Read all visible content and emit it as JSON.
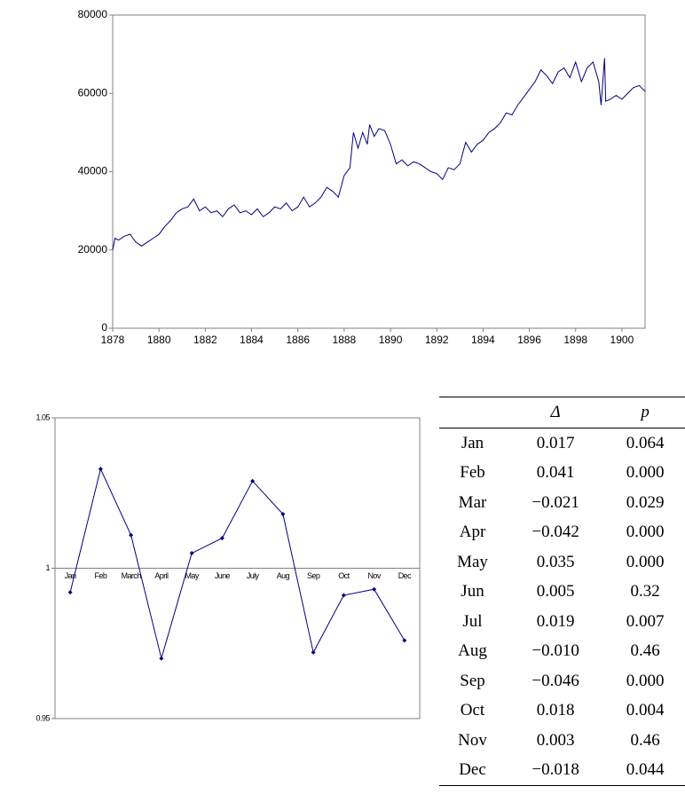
{
  "chart_data": [
    {
      "type": "line",
      "color": "#000080",
      "x": [
        1878.0,
        1878.1,
        1878.25,
        1878.5,
        1878.75,
        1879.0,
        1879.25,
        1879.5,
        1879.75,
        1880.0,
        1880.25,
        1880.5,
        1880.75,
        1881.0,
        1881.25,
        1881.5,
        1881.75,
        1882.0,
        1882.25,
        1882.5,
        1882.75,
        1883.0,
        1883.25,
        1883.5,
        1883.75,
        1884.0,
        1884.25,
        1884.5,
        1884.75,
        1885.0,
        1885.25,
        1885.5,
        1885.75,
        1886.0,
        1886.25,
        1886.5,
        1886.75,
        1887.0,
        1887.25,
        1887.5,
        1887.75,
        1888.0,
        1888.25,
        1888.4,
        1888.6,
        1888.8,
        1889.0,
        1889.1,
        1889.3,
        1889.5,
        1889.75,
        1890.0,
        1890.25,
        1890.5,
        1890.75,
        1891.0,
        1891.25,
        1891.5,
        1891.75,
        1892.0,
        1892.25,
        1892.5,
        1892.75,
        1893.0,
        1893.25,
        1893.5,
        1893.75,
        1894.0,
        1894.25,
        1894.5,
        1894.75,
        1895.0,
        1895.25,
        1895.5,
        1895.75,
        1896.0,
        1896.25,
        1896.5,
        1896.75,
        1897.0,
        1897.25,
        1897.5,
        1897.75,
        1898.0,
        1898.25,
        1898.5,
        1898.75,
        1899.0,
        1899.1,
        1899.25,
        1899.3,
        1899.5,
        1899.75,
        1900.0,
        1900.25,
        1900.5,
        1900.75,
        1901.0
      ],
      "values": [
        20000,
        23000,
        22500,
        23500,
        24000,
        22000,
        21000,
        22000,
        23000,
        24000,
        26000,
        27500,
        29500,
        30500,
        31000,
        33000,
        30000,
        31000,
        29500,
        30000,
        28500,
        30500,
        31500,
        29500,
        30000,
        29000,
        30500,
        28500,
        29500,
        31000,
        30500,
        32000,
        30000,
        31000,
        33500,
        31000,
        32000,
        33500,
        36000,
        35000,
        33500,
        39000,
        41000,
        50000,
        46000,
        50000,
        47000,
        52000,
        49000,
        51000,
        50500,
        47000,
        42000,
        43000,
        41500,
        42500,
        42000,
        41000,
        40000,
        39500,
        38000,
        41000,
        40500,
        42000,
        47500,
        45000,
        47000,
        48000,
        50000,
        51000,
        52500,
        55000,
        54500,
        57000,
        59000,
        61000,
        63000,
        66000,
        64500,
        62500,
        65500,
        66500,
        64000,
        68000,
        63000,
        66500,
        68000,
        63000,
        57000,
        69000,
        58000,
        58500,
        59500,
        58500,
        60000,
        61500,
        62000,
        60500
      ],
      "xlim": [
        1878,
        1901
      ],
      "xticks": [
        1878,
        1880,
        1882,
        1884,
        1886,
        1888,
        1890,
        1892,
        1894,
        1896,
        1898,
        1900
      ],
      "ylim": [
        0,
        80000
      ],
      "yticks": [
        0,
        20000,
        40000,
        60000,
        80000
      ],
      "grid": false
    },
    {
      "type": "line",
      "color": "#000080",
      "markers": true,
      "categories": [
        "Jan",
        "Feb",
        "March",
        "April",
        "May",
        "June",
        "July",
        "Aug",
        "Sep",
        "Oct",
        "Nov",
        "Dec"
      ],
      "values": [
        0.992,
        1.033,
        1.011,
        0.97,
        1.005,
        1.01,
        1.029,
        1.018,
        0.972,
        0.991,
        0.993,
        0.976
      ],
      "ylim": [
        0.95,
        1.05
      ],
      "yticks": [
        0.95,
        1,
        1.05
      ],
      "grid": false
    }
  ],
  "table": {
    "header": [
      "Δ",
      "p"
    ],
    "rows": [
      [
        "Jan",
        "0.017",
        "0.064"
      ],
      [
        "Feb",
        "0.041",
        "0.000"
      ],
      [
        "Mar",
        "−0.021",
        "0.029"
      ],
      [
        "Apr",
        "−0.042",
        "0.000"
      ],
      [
        "May",
        "0.035",
        "0.000"
      ],
      [
        "Jun",
        "0.005",
        "0.32"
      ],
      [
        "Jul",
        "0.019",
        "0.007"
      ],
      [
        "Aug",
        "−0.010",
        "0.46"
      ],
      [
        "Sep",
        "−0.046",
        "0.000"
      ],
      [
        "Oct",
        "0.018",
        "0.004"
      ],
      [
        "Nov",
        "0.003",
        "0.46"
      ],
      [
        "Dec",
        "−0.018",
        "0.044"
      ]
    ]
  }
}
